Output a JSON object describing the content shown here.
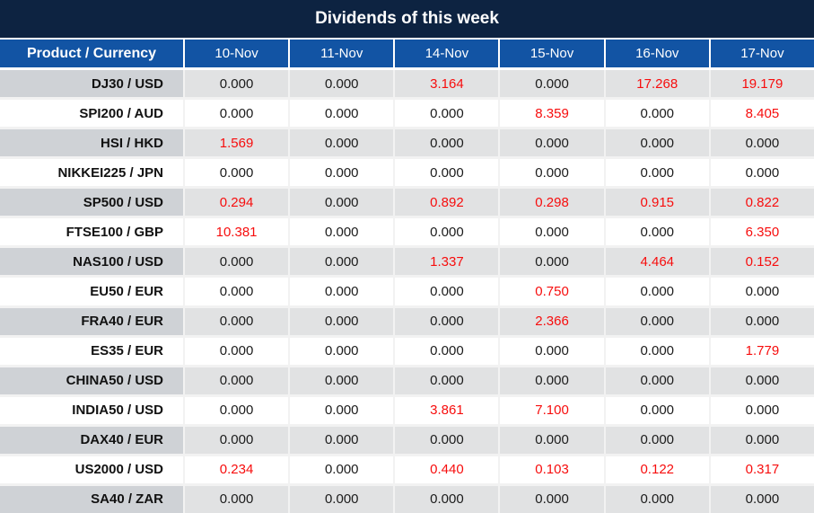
{
  "chart_data": {
    "type": "table",
    "title": "Dividends of this week",
    "columns": [
      "Product / Currency",
      "10-Nov",
      "11-Nov",
      "14-Nov",
      "15-Nov",
      "16-Nov",
      "17-Nov"
    ],
    "rows": [
      {
        "product": "DJ30 / USD",
        "values": [
          "0.000",
          "0.000",
          "3.164",
          "0.000",
          "17.268",
          "19.179"
        ]
      },
      {
        "product": "SPI200 / AUD",
        "values": [
          "0.000",
          "0.000",
          "0.000",
          "8.359",
          "0.000",
          "8.405"
        ]
      },
      {
        "product": "HSI / HKD",
        "values": [
          "1.569",
          "0.000",
          "0.000",
          "0.000",
          "0.000",
          "0.000"
        ]
      },
      {
        "product": "NIKKEI225 / JPN",
        "values": [
          "0.000",
          "0.000",
          "0.000",
          "0.000",
          "0.000",
          "0.000"
        ]
      },
      {
        "product": "SP500 / USD",
        "values": [
          "0.294",
          "0.000",
          "0.892",
          "0.298",
          "0.915",
          "0.822"
        ]
      },
      {
        "product": "FTSE100 / GBP",
        "values": [
          "10.381",
          "0.000",
          "0.000",
          "0.000",
          "0.000",
          "6.350"
        ]
      },
      {
        "product": "NAS100 / USD",
        "values": [
          "0.000",
          "0.000",
          "1.337",
          "0.000",
          "4.464",
          "0.152"
        ]
      },
      {
        "product": "EU50 / EUR",
        "values": [
          "0.000",
          "0.000",
          "0.000",
          "0.750",
          "0.000",
          "0.000"
        ]
      },
      {
        "product": "FRA40 / EUR",
        "values": [
          "0.000",
          "0.000",
          "0.000",
          "2.366",
          "0.000",
          "0.000"
        ]
      },
      {
        "product": "ES35 / EUR",
        "values": [
          "0.000",
          "0.000",
          "0.000",
          "0.000",
          "0.000",
          "1.779"
        ]
      },
      {
        "product": "CHINA50 / USD",
        "values": [
          "0.000",
          "0.000",
          "0.000",
          "0.000",
          "0.000",
          "0.000"
        ]
      },
      {
        "product": "INDIA50 / USD",
        "values": [
          "0.000",
          "0.000",
          "3.861",
          "7.100",
          "0.000",
          "0.000"
        ]
      },
      {
        "product": "DAX40 / EUR",
        "values": [
          "0.000",
          "0.000",
          "0.000",
          "0.000",
          "0.000",
          "0.000"
        ]
      },
      {
        "product": "US2000 / USD",
        "values": [
          "0.234",
          "0.000",
          "0.440",
          "0.103",
          "0.122",
          "0.317"
        ]
      },
      {
        "product": "SA40 / ZAR",
        "values": [
          "0.000",
          "0.000",
          "0.000",
          "0.000",
          "0.000",
          "0.000"
        ]
      }
    ],
    "value_color_rule": "values greater than zero are shown in red, zero values in black",
    "row_shading_rule": "rows alternate gray (first row) and white",
    "layout": {
      "grid": "off",
      "legend": "none"
    },
    "colors": {
      "title_bar_bg": "#0d2341",
      "header_row_bg": "#1254a4",
      "header_text": "#ffffff",
      "gray_row_product_bg": "#cfd2d6",
      "gray_row_value_bg": "#e1e2e3",
      "white_row_bg": "#ffffff",
      "zero_value_text": "#1b1b1b",
      "positive_value_text": "#f70d0d"
    }
  }
}
